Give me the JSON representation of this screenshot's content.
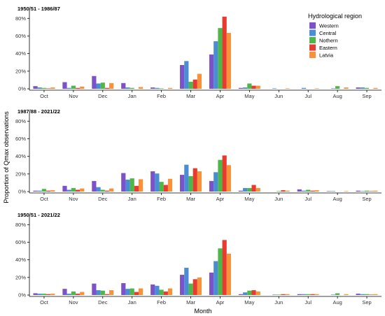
{
  "chart_data": {
    "type": "bar",
    "ylabel": "Proportion of Qmax observations",
    "xlabel": "Month",
    "legend_title": "Hydrological region",
    "legend_placement": "top-right",
    "grid": false,
    "categories": [
      "Oct",
      "Nov",
      "Dec",
      "Jan",
      "Feb",
      "Mar",
      "Apr",
      "May",
      "Jun",
      "Jul",
      "Aug",
      "Sep"
    ],
    "series_names": [
      "Western",
      "Central",
      "Nothern",
      "Eastern",
      "Latvia"
    ],
    "colors": [
      "#7B52C9",
      "#4A8DD4",
      "#4DB848",
      "#E83A2E",
      "#F7923A"
    ],
    "yticks": [
      0,
      20,
      40,
      60,
      80
    ],
    "ytick_labels": [
      "0%",
      "20%",
      "40%",
      "60%",
      "80%"
    ],
    "ylim": [
      0,
      85
    ],
    "panels": [
      {
        "title": "1950/51 - 1986/87",
        "series": [
          {
            "name": "Western",
            "values": [
              3,
              7.5,
              14.5,
              6.5,
              1.5,
              27,
              39,
              1,
              0,
              0,
              0,
              1.5
            ]
          },
          {
            "name": "Central",
            "values": [
              1.5,
              1,
              6,
              1.5,
              1,
              31.5,
              54,
              1.5,
              0.5,
              1,
              0.5,
              1.5
            ]
          },
          {
            "name": "Nothern",
            "values": [
              1,
              3.5,
              7,
              1,
              0.5,
              8,
              69,
              6,
              0,
              0,
              3,
              1
            ]
          },
          {
            "name": "Eastern",
            "values": [
              0.5,
              1,
              1,
              0,
              0,
              10.5,
              82,
              3.5,
              0,
              0,
              0,
              0
            ]
          },
          {
            "name": "Latvia",
            "values": [
              1.5,
              2.5,
              6.5,
              2,
              1,
              17,
              63.5,
              3.5,
              0.5,
              0.5,
              1.5,
              1
            ]
          }
        ]
      },
      {
        "title": "1987/88 - 2021/22",
        "series": [
          {
            "name": "Western",
            "values": [
              1,
              6.5,
              12,
              21,
              23,
              19,
              12,
              1,
              0,
              2.5,
              0.5,
              1
            ]
          },
          {
            "name": "Central",
            "values": [
              1,
              2,
              5,
              13.5,
              20.5,
              30.5,
              22,
              4,
              0,
              1,
              0.5,
              0.5
            ]
          },
          {
            "name": "Nothern",
            "values": [
              3,
              4,
              2,
              15,
              11,
              17.5,
              36,
              4,
              0.5,
              2,
              0,
              1
            ]
          },
          {
            "name": "Eastern",
            "values": [
              1,
              2,
              1,
              6.5,
              7.5,
              26.5,
              41,
              7.5,
              1.5,
              1,
              0,
              0.5
            ]
          },
          {
            "name": "Latvia",
            "values": [
              1.5,
              3.5,
              3.5,
              14,
              14.5,
              23,
              30,
              4,
              1,
              1.5,
              0.5,
              1
            ]
          }
        ]
      },
      {
        "title": "1950/51 - 2021/22",
        "series": [
          {
            "name": "Western",
            "values": [
              2,
              7,
              13,
              13.5,
              12,
              23,
              25.5,
              1,
              0,
              1,
              0,
              1.5
            ]
          },
          {
            "name": "Central",
            "values": [
              1.5,
              1.5,
              5.5,
              7,
              10.5,
              31,
              38.5,
              3,
              0.5,
              1,
              0.5,
              1
            ]
          },
          {
            "name": "Nothern",
            "values": [
              1.5,
              4,
              5,
              7.5,
              6,
              13,
              53,
              5,
              0.5,
              1,
              2,
              1
            ]
          },
          {
            "name": "Eastern",
            "values": [
              1,
              1.5,
              1,
              3.5,
              4,
              18,
              62.5,
              5.5,
              1,
              1,
              0,
              0.5
            ]
          },
          {
            "name": "Latvia",
            "values": [
              1.5,
              3.5,
              5.5,
              7.5,
              7.5,
              20,
              47,
              4,
              1,
              1,
              1,
              1
            ]
          }
        ]
      }
    ]
  }
}
